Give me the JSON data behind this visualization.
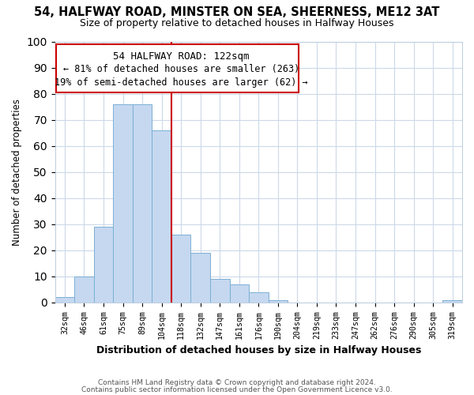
{
  "title": "54, HALFWAY ROAD, MINSTER ON SEA, SHEERNESS, ME12 3AT",
  "subtitle": "Size of property relative to detached houses in Halfway Houses",
  "xlabel": "Distribution of detached houses by size in Halfway Houses",
  "ylabel": "Number of detached properties",
  "bin_labels": [
    "32sqm",
    "46sqm",
    "61sqm",
    "75sqm",
    "89sqm",
    "104sqm",
    "118sqm",
    "132sqm",
    "147sqm",
    "161sqm",
    "176sqm",
    "190sqm",
    "204sqm",
    "219sqm",
    "233sqm",
    "247sqm",
    "262sqm",
    "276sqm",
    "290sqm",
    "305sqm",
    "319sqm"
  ],
  "bar_heights": [
    2,
    10,
    29,
    76,
    76,
    66,
    26,
    19,
    9,
    7,
    4,
    1,
    0,
    0,
    0,
    0,
    0,
    0,
    0,
    0,
    1
  ],
  "bar_color": "#c5d8f0",
  "bar_edge_color": "#7bafd4",
  "vline_color": "#cc0000",
  "ylim": [
    0,
    100
  ],
  "yticks": [
    0,
    10,
    20,
    30,
    40,
    50,
    60,
    70,
    80,
    90,
    100
  ],
  "annotation_title": "54 HALFWAY ROAD: 122sqm",
  "annotation_line1": "← 81% of detached houses are smaller (263)",
  "annotation_line2": "19% of semi-detached houses are larger (62) →",
  "annotation_box_color": "#cc0000",
  "footer_line1": "Contains HM Land Registry data © Crown copyright and database right 2024.",
  "footer_line2": "Contains public sector information licensed under the Open Government Licence v3.0.",
  "bg_color": "#ffffff",
  "grid_color": "#ccd9e8"
}
